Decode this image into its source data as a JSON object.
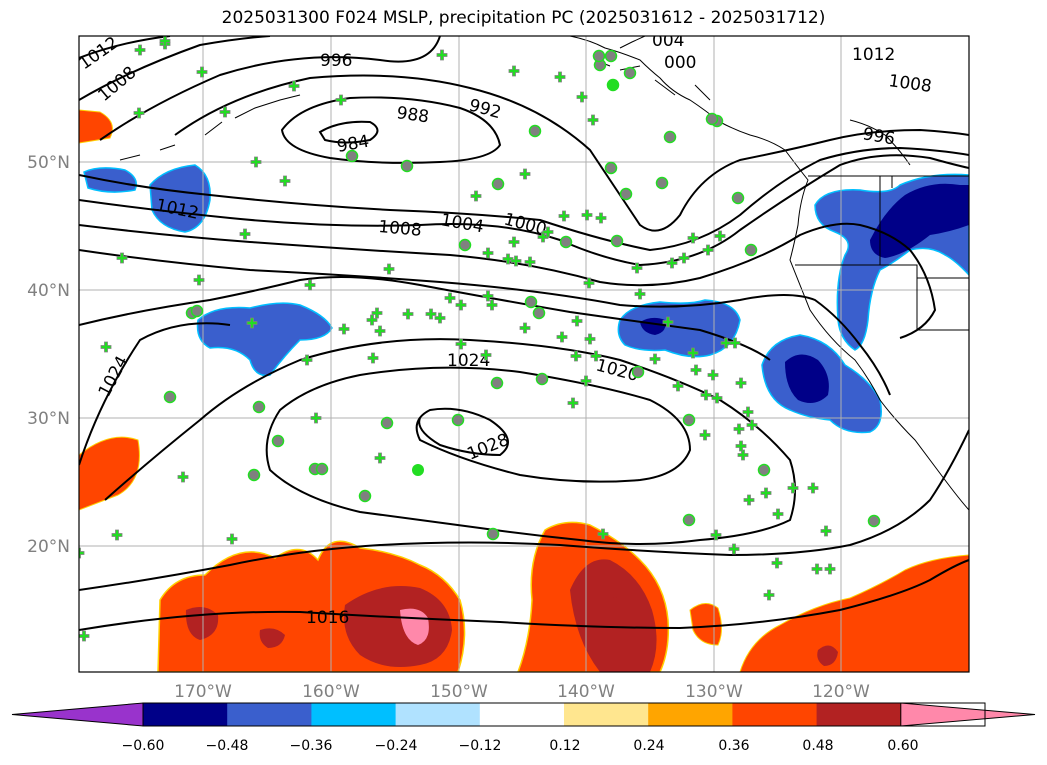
{
  "title": "2025031300 F024 MSLP, precipitation PC (2025031612 - 2025031712)",
  "map": {
    "lat_labels": [
      "50°N",
      "40°N",
      "30°N",
      "20°N"
    ],
    "lon_labels": [
      "170°W",
      "160°W",
      "150°W",
      "140°W",
      "130°W",
      "120°W"
    ],
    "contour_labels": [
      "1012",
      "1008",
      "996",
      "004",
      "000",
      "1012",
      "1008",
      "996",
      "988",
      "992",
      "984",
      "1012",
      "1008",
      "1004",
      "1000",
      "1024",
      "1024",
      "1020",
      "1028",
      "1016"
    ]
  },
  "colorbar": {
    "tick_labels": [
      "−0.60",
      "−0.48",
      "−0.36",
      "−0.24",
      "−0.12",
      "0.12",
      "0.24",
      "0.36",
      "0.48",
      "0.60"
    ],
    "colors": [
      "#9933cc",
      "#000088",
      "#3a5fcd",
      "#00bfff",
      "#b0e2ff",
      "#ffffff",
      "#ffe68f",
      "#ffa500",
      "#ff4500",
      "#b22222",
      "#ff88aa"
    ]
  },
  "colors": {
    "grid": "#b0b0b0",
    "axis_label": "#808080",
    "station_green": "#22dd22",
    "station_gray": "#808080"
  },
  "stations": {
    "crosses": [
      [
        140,
        50
      ],
      [
        165,
        44
      ],
      [
        202,
        72
      ],
      [
        139,
        113
      ],
      [
        225,
        112
      ],
      [
        256,
        162
      ],
      [
        294,
        86
      ],
      [
        341,
        100
      ],
      [
        285,
        181
      ],
      [
        245,
        234
      ],
      [
        122,
        258
      ],
      [
        199,
        280
      ],
      [
        310,
        285
      ],
      [
        252,
        323
      ],
      [
        307,
        360
      ],
      [
        344,
        329
      ],
      [
        372,
        320
      ],
      [
        377,
        313
      ],
      [
        389,
        269
      ],
      [
        408,
        314
      ],
      [
        373,
        358
      ],
      [
        380,
        331
      ],
      [
        316,
        418
      ],
      [
        380,
        458
      ],
      [
        514,
        71
      ],
      [
        560,
        77
      ],
      [
        582,
        97
      ],
      [
        593,
        120
      ],
      [
        525,
        174
      ],
      [
        476,
        196
      ],
      [
        564,
        216
      ],
      [
        587,
        215
      ],
      [
        601,
        218
      ],
      [
        543,
        237
      ],
      [
        548,
        232
      ],
      [
        514,
        242
      ],
      [
        508,
        259
      ],
      [
        516,
        261
      ],
      [
        530,
        262
      ],
      [
        488,
        253
      ],
      [
        488,
        296
      ],
      [
        492,
        305
      ],
      [
        450,
        298
      ],
      [
        461,
        305
      ],
      [
        431,
        314
      ],
      [
        440,
        318
      ],
      [
        461,
        344
      ],
      [
        486,
        355
      ],
      [
        525,
        328
      ],
      [
        562,
        337
      ],
      [
        577,
        321
      ],
      [
        590,
        339
      ],
      [
        576,
        356
      ],
      [
        596,
        356
      ],
      [
        589,
        283
      ],
      [
        637,
        268
      ],
      [
        640,
        294
      ],
      [
        672,
        263
      ],
      [
        693,
        238
      ],
      [
        708,
        250
      ],
      [
        720,
        236
      ],
      [
        684,
        258
      ],
      [
        668,
        322
      ],
      [
        655,
        359
      ],
      [
        693,
        353
      ],
      [
        696,
        370
      ],
      [
        713,
        375
      ],
      [
        726,
        343
      ],
      [
        735,
        343
      ],
      [
        741,
        383
      ],
      [
        678,
        386
      ],
      [
        706,
        395
      ],
      [
        717,
        398
      ],
      [
        748,
        412
      ],
      [
        739,
        429
      ],
      [
        752,
        425
      ],
      [
        743,
        455
      ],
      [
        741,
        446
      ],
      [
        705,
        435
      ],
      [
        749,
        500
      ],
      [
        766,
        493
      ],
      [
        778,
        514
      ],
      [
        734,
        549
      ],
      [
        793,
        488
      ],
      [
        813,
        488
      ],
      [
        777,
        563
      ],
      [
        769,
        595
      ],
      [
        817,
        569
      ],
      [
        830,
        569
      ],
      [
        826,
        531
      ],
      [
        716,
        535
      ],
      [
        603,
        534
      ],
      [
        573,
        403
      ],
      [
        586,
        381
      ],
      [
        442,
        55
      ],
      [
        232,
        539
      ],
      [
        117,
        535
      ],
      [
        79,
        553
      ],
      [
        84,
        636
      ],
      [
        165,
        41
      ],
      [
        183,
        477
      ],
      [
        106,
        347
      ]
    ],
    "dots": [
      [
        600,
        65
      ],
      [
        630,
        73
      ],
      [
        613,
        85
      ],
      [
        670,
        137
      ],
      [
        662,
        183
      ],
      [
        626,
        194
      ],
      [
        611,
        168
      ],
      [
        617,
        241
      ],
      [
        566,
        242
      ],
      [
        531,
        302
      ],
      [
        539,
        313
      ],
      [
        542,
        379
      ],
      [
        497,
        383
      ],
      [
        498,
        184
      ],
      [
        465,
        245
      ],
      [
        352,
        156
      ],
      [
        407,
        166
      ],
      [
        315,
        469
      ],
      [
        322,
        469
      ],
      [
        458,
        420
      ],
      [
        365,
        496
      ],
      [
        254,
        475
      ],
      [
        278,
        441
      ],
      [
        170,
        397
      ],
      [
        259,
        407
      ],
      [
        192,
        313
      ],
      [
        197,
        311
      ],
      [
        387,
        423
      ],
      [
        493,
        534
      ],
      [
        638,
        372
      ],
      [
        689,
        420
      ],
      [
        764,
        470
      ],
      [
        738,
        198
      ],
      [
        751,
        250
      ],
      [
        717,
        121
      ],
      [
        712,
        119
      ],
      [
        874,
        521
      ],
      [
        689,
        520
      ],
      [
        599,
        56
      ],
      [
        611,
        56
      ],
      [
        535,
        131
      ]
    ],
    "bright": [
      [
        613,
        85
      ],
      [
        418,
        470
      ]
    ]
  }
}
